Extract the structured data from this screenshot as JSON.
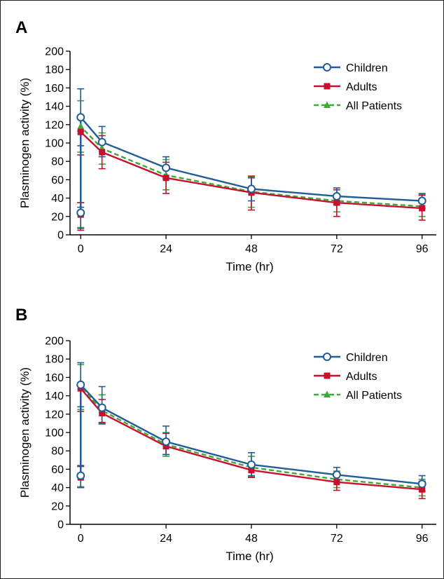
{
  "panels": [
    {
      "letter": "A"
    },
    {
      "letter": "B"
    }
  ],
  "colors": {
    "children": "#1f5c99",
    "adults": "#c8102e",
    "all_patients": "#3daa35",
    "axis": "#000000"
  },
  "chart_data": [
    {
      "type": "line",
      "panel": "A",
      "title": "",
      "xlabel": "Time (hr)",
      "ylabel": "Plasminogen activity (%)",
      "xticks": [
        0,
        24,
        48,
        72,
        96
      ],
      "yticks": [
        0,
        20,
        40,
        60,
        80,
        100,
        120,
        140,
        160,
        180,
        200
      ],
      "xlim": [
        -3,
        100
      ],
      "ylim": [
        0,
        200
      ],
      "legend_position": "top-right",
      "series": [
        {
          "name": "Children",
          "key": "children",
          "marker": "circle",
          "dash": "solid",
          "x": [
            0,
            0,
            6,
            24,
            48,
            72,
            96
          ],
          "y": [
            24,
            128,
            101,
            73,
            50,
            42,
            37
          ],
          "err_low": [
            7,
            97,
            85,
            61,
            37,
            33,
            29
          ],
          "err_high": [
            30,
            159,
            118,
            85,
            62,
            51,
            45
          ]
        },
        {
          "name": "Adults",
          "key": "adults",
          "marker": "square",
          "dash": "solid",
          "x": [
            0,
            0,
            6,
            24,
            48,
            72,
            96
          ],
          "y": [
            22,
            112,
            90,
            62,
            46,
            35,
            29
          ],
          "err_low": [
            5,
            87,
            72,
            45,
            27,
            20,
            16
          ],
          "err_high": [
            35,
            113,
            108,
            79,
            64,
            49,
            43
          ]
        },
        {
          "name": "All Patients",
          "key": "all_patients",
          "marker": "triangle",
          "dash": "dashed",
          "x": [
            0,
            0,
            6,
            24,
            48,
            72,
            96
          ],
          "y": [
            23,
            118,
            94,
            65,
            47,
            37,
            31
          ],
          "err_low": [
            8,
            90,
            77,
            49,
            30,
            25,
            20
          ],
          "err_high": [
            35,
            146,
            111,
            82,
            63,
            51,
            44
          ]
        }
      ]
    },
    {
      "type": "line",
      "panel": "B",
      "title": "",
      "xlabel": "Time (hr)",
      "ylabel": "Plasminogen activity (%)",
      "xticks": [
        0,
        24,
        48,
        72,
        96
      ],
      "yticks": [
        0,
        20,
        40,
        60,
        80,
        100,
        120,
        140,
        160,
        180,
        200
      ],
      "xlim": [
        -3,
        100
      ],
      "ylim": [
        0,
        200
      ],
      "legend_position": "top-right",
      "series": [
        {
          "name": "Children",
          "key": "children",
          "marker": "circle",
          "dash": "solid",
          "x": [
            0,
            0,
            6,
            24,
            48,
            72,
            96
          ],
          "y": [
            53,
            152,
            127,
            90,
            65,
            54,
            44
          ],
          "err_low": [
            40,
            128,
            110,
            76,
            53,
            46,
            36
          ],
          "err_high": [
            64,
            176,
            150,
            107,
            78,
            62,
            53
          ]
        },
        {
          "name": "Adults",
          "key": "adults",
          "marker": "square",
          "dash": "solid",
          "x": [
            0,
            0,
            6,
            24,
            48,
            72,
            96
          ],
          "y": [
            51,
            148,
            121,
            85,
            59,
            46,
            38
          ],
          "err_low": [
            40,
            123,
            111,
            76,
            51,
            37,
            28
          ],
          "err_high": [
            63,
            150,
            136,
            99,
            66,
            55,
            47
          ]
        },
        {
          "name": "All Patients",
          "key": "all_patients",
          "marker": "triangle",
          "dash": "dashed",
          "x": [
            0,
            0,
            6,
            24,
            48,
            72,
            96
          ],
          "y": [
            52,
            150,
            124,
            87,
            62,
            49,
            40
          ],
          "err_low": [
            41,
            125,
            109,
            74,
            52,
            40,
            31
          ],
          "err_high": [
            64,
            174,
            141,
            100,
            74,
            58,
            49
          ]
        }
      ]
    }
  ]
}
